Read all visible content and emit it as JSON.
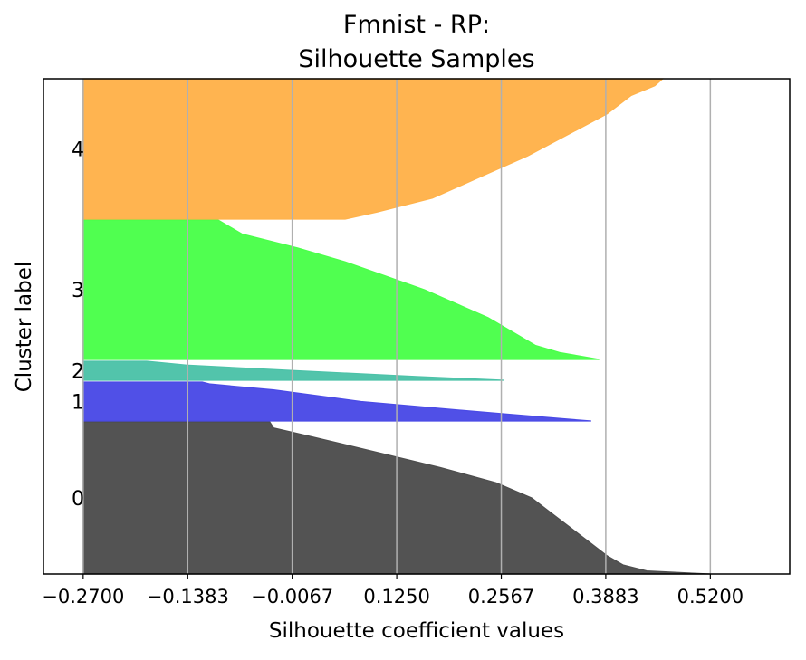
{
  "chart_data": {
    "type": "area",
    "title_line1": "Fmnist - RP:",
    "title_line2": "Silhouette Samples",
    "xlabel": "Silhouette coefficient values",
    "ylabel": "Cluster label",
    "xlim": [
      -0.32,
      0.62
    ],
    "x_ticks": [
      -0.27,
      -0.1383,
      -0.0067,
      0.125,
      0.2567,
      0.3883,
      0.52
    ],
    "x_tick_labels": [
      "−0.2700",
      "−0.1383",
      "−0.0067",
      "0.1250",
      "0.2567",
      "0.3883",
      "0.5200"
    ],
    "grid": "vertical",
    "baseline": -0.27,
    "ylim": [
      0,
      547
    ],
    "clusters": [
      {
        "label": "0",
        "color": "#4d4d4d",
        "y_start": 0,
        "y_end": 168,
        "profile": [
          [
            0.0,
            0.52
          ],
          [
            0.02,
            0.44
          ],
          [
            0.06,
            0.41
          ],
          [
            0.12,
            0.39
          ],
          [
            0.2,
            0.37
          ],
          [
            0.3,
            0.345
          ],
          [
            0.4,
            0.32
          ],
          [
            0.5,
            0.295
          ],
          [
            0.6,
            0.25
          ],
          [
            0.7,
            0.18
          ],
          [
            0.8,
            0.1
          ],
          [
            0.9,
            0.02
          ],
          [
            0.96,
            -0.03
          ],
          [
            1.0,
            -0.035
          ]
        ]
      },
      {
        "label": "1",
        "color": "#4a4ae6",
        "y_start": 169,
        "y_end": 212,
        "profile": [
          [
            0.0,
            0.37
          ],
          [
            0.05,
            0.34
          ],
          [
            0.2,
            0.25
          ],
          [
            0.5,
            0.08
          ],
          [
            0.8,
            -0.03
          ],
          [
            0.95,
            -0.11
          ],
          [
            1.0,
            -0.12
          ]
        ]
      },
      {
        "label": "2",
        "color": "#4cc2a8",
        "y_start": 214,
        "y_end": 235,
        "profile": [
          [
            0.0,
            0.26
          ],
          [
            0.2,
            0.15
          ],
          [
            0.5,
            0.0
          ],
          [
            0.8,
            -0.14
          ],
          [
            1.0,
            -0.19
          ]
        ]
      },
      {
        "label": "3",
        "color": "#4aff4a",
        "y_start": 237,
        "y_end": 391,
        "profile": [
          [
            0.0,
            0.38
          ],
          [
            0.05,
            0.33
          ],
          [
            0.1,
            0.3
          ],
          [
            0.2,
            0.27
          ],
          [
            0.3,
            0.24
          ],
          [
            0.4,
            0.2
          ],
          [
            0.5,
            0.16
          ],
          [
            0.6,
            0.11
          ],
          [
            0.7,
            0.06
          ],
          [
            0.8,
            0.0
          ],
          [
            0.9,
            -0.07
          ],
          [
            1.0,
            -0.1
          ]
        ]
      },
      {
        "label": "4",
        "color": "#ffb24a",
        "y_start": 392,
        "y_end": 547,
        "profile": [
          [
            0.0,
            0.06
          ],
          [
            0.05,
            0.1
          ],
          [
            0.15,
            0.17
          ],
          [
            0.3,
            0.23
          ],
          [
            0.45,
            0.29
          ],
          [
            0.6,
            0.34
          ],
          [
            0.75,
            0.39
          ],
          [
            0.88,
            0.42
          ],
          [
            0.95,
            0.45
          ],
          [
            1.0,
            0.46
          ]
        ]
      }
    ]
  }
}
